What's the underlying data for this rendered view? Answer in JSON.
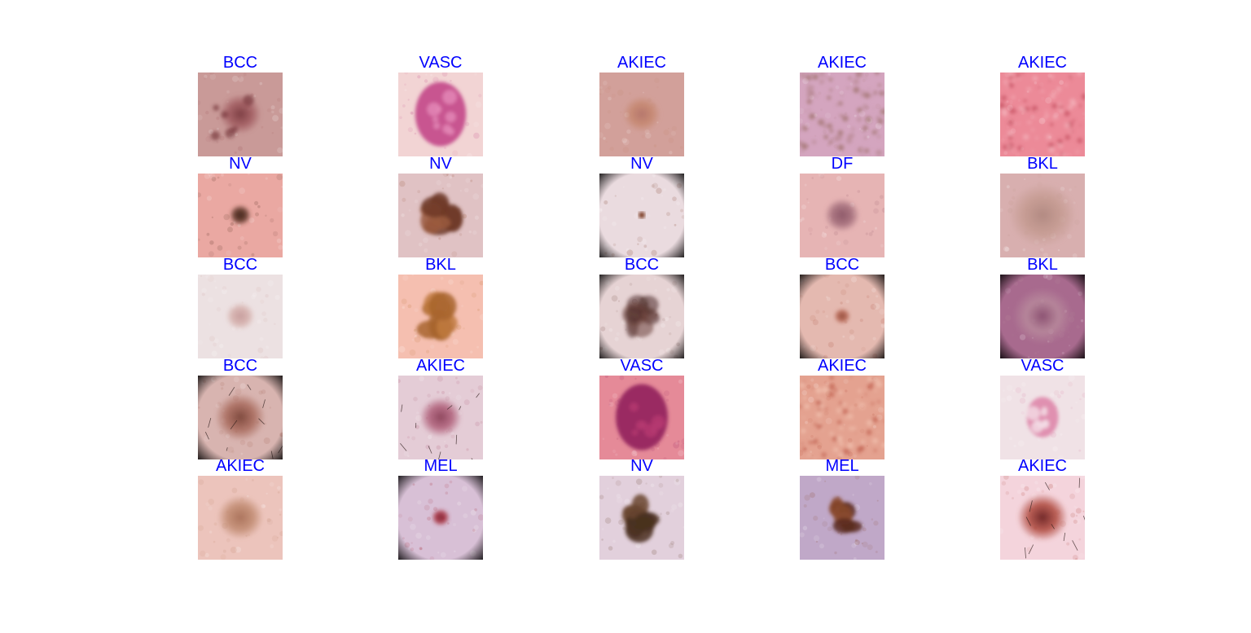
{
  "figure": {
    "panels": [
      {
        "label": "BCC",
        "skin": "#c99a98",
        "lesion": "#a05a5f",
        "lesion2": "#7a3b40",
        "style": "spots",
        "size": 0.5,
        "vignette": false
      },
      {
        "label": "VASC",
        "skin": "#f2d4d4",
        "lesion": "#c85490",
        "lesion2": "#e58ab8",
        "style": "vasc",
        "size": 0.8,
        "vignette": false
      },
      {
        "label": "AKIEC",
        "skin": "#d2a09a",
        "lesion": "#c5876f",
        "lesion2": "#b4746a",
        "style": "diffuse",
        "size": 0.45,
        "vignette": false
      },
      {
        "label": "AKIEC",
        "skin": "#d4a5bf",
        "lesion": "#b98a95",
        "lesion2": "#9c6f6a",
        "style": "speckle",
        "size": 0.7,
        "vignette": false
      },
      {
        "label": "AKIEC",
        "skin": "#ec8a98",
        "lesion": "#f3b2ba",
        "lesion2": "#c55060",
        "style": "speckle",
        "size": 0.9,
        "vignette": false
      },
      {
        "label": "NV",
        "skin": "#eaa8a2",
        "lesion": "#5a3326",
        "lesion2": "#3a2018",
        "style": "dot",
        "size": 0.26,
        "vignette": false
      },
      {
        "label": "NV",
        "skin": "#e0c2c4",
        "lesion": "#9a5a3e",
        "lesion2": "#6e3a28",
        "style": "blotch",
        "size": 0.62,
        "vignette": false
      },
      {
        "label": "NV",
        "skin": "#eadbdf",
        "lesion": "#7a3a20",
        "lesion2": "#5a2a18",
        "style": "tiny",
        "size": 0.1,
        "vignette": true
      },
      {
        "label": "DF",
        "skin": "#e6b4b4",
        "lesion": "#a06a78",
        "lesion2": "#8a5566",
        "style": "dot",
        "size": 0.42,
        "vignette": false
      },
      {
        "label": "BKL",
        "skin": "#d8afaf",
        "lesion": "#c49a90",
        "lesion2": "#b08880",
        "style": "diffuse",
        "size": 0.8,
        "vignette": false
      },
      {
        "label": "BCC",
        "skin": "#ece1e2",
        "lesion": "#d4aeaa",
        "lesion2": "#c59a9a",
        "style": "diffuse",
        "size": 0.35,
        "vignette": false
      },
      {
        "label": "BKL",
        "skin": "#f5bfb0",
        "lesion": "#c07a3e",
        "lesion2": "#a8652e",
        "style": "blotch",
        "size": 0.66,
        "vignette": false
      },
      {
        "label": "BCC",
        "skin": "#e6d3d4",
        "lesion": "#6a4038",
        "lesion2": "#4a2c28",
        "style": "ring",
        "size": 0.55,
        "vignette": true
      },
      {
        "label": "BCC",
        "skin": "#e4b9b0",
        "lesion": "#b3614e",
        "lesion2": "#8e4a3a",
        "style": "dot",
        "size": 0.2,
        "vignette": true
      },
      {
        "label": "BKL",
        "skin": "#a86a8e",
        "lesion": "#b88a9c",
        "lesion2": "#8a5070",
        "style": "diffuse",
        "size": 0.7,
        "vignette": true
      },
      {
        "label": "BCC",
        "skin": "#d8b4b0",
        "lesion": "#a86a5c",
        "lesion2": "#7a4438",
        "style": "hair",
        "size": 0.6,
        "vignette": true
      },
      {
        "label": "AKIEC",
        "skin": "#e4ccd6",
        "lesion": "#b0607a",
        "lesion2": "#8a4058",
        "style": "hair",
        "size": 0.5,
        "vignette": false
      },
      {
        "label": "VASC",
        "skin": "#e58a98",
        "lesion": "#9a2a62",
        "lesion2": "#b53a70",
        "style": "vasc",
        "size": 0.82,
        "vignette": false
      },
      {
        "label": "AKIEC",
        "skin": "#e4a290",
        "lesion": "#c0604e",
        "lesion2": "#f2c4b2",
        "style": "speckle",
        "size": 0.9,
        "vignette": false
      },
      {
        "label": "VASC",
        "skin": "#f0e2e6",
        "lesion": "#e090b0",
        "lesion2": "#f4dde6",
        "style": "vasc",
        "size": 0.5,
        "vignette": false
      },
      {
        "label": "AKIEC",
        "skin": "#ecc4bc",
        "lesion": "#c08a70",
        "lesion2": "#a87058",
        "style": "diffuse",
        "size": 0.55,
        "vignette": false
      },
      {
        "label": "MEL",
        "skin": "#d8c0d6",
        "lesion": "#a8303e",
        "lesion2": "#7a2030",
        "style": "dot",
        "size": 0.22,
        "vignette": true
      },
      {
        "label": "NV",
        "skin": "#e2d0dc",
        "lesion": "#6a4630",
        "lesion2": "#4a3020",
        "style": "blotch",
        "size": 0.62,
        "vignette": false
      },
      {
        "label": "MEL",
        "skin": "#c0a8c8",
        "lesion": "#8a4a2e",
        "lesion2": "#5a2a1e",
        "style": "blotch",
        "size": 0.5,
        "vignette": false
      },
      {
        "label": "AKIEC",
        "skin": "#f4d4dc",
        "lesion": "#b04a3e",
        "lesion2": "#6a2020",
        "style": "hair",
        "size": 0.6,
        "vignette": false
      }
    ]
  }
}
